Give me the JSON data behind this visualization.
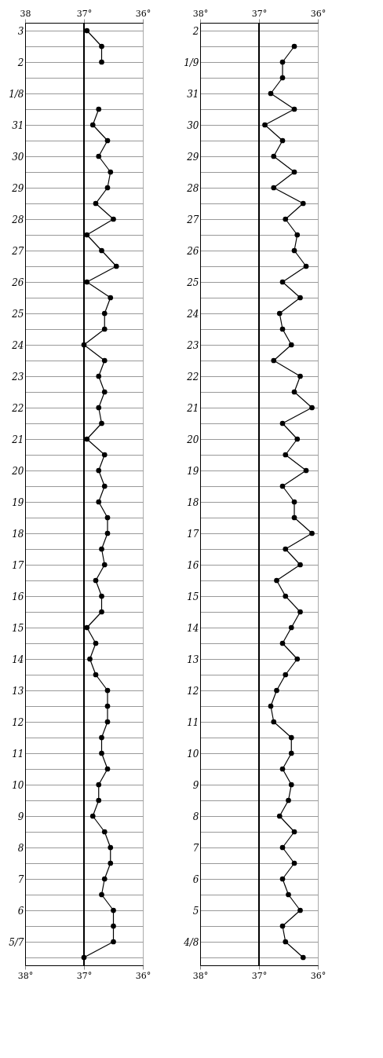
{
  "chart_data": [
    {
      "type": "line",
      "orientation": "horizontal",
      "color": "#000000",
      "marker": "circle",
      "grid": true,
      "categories": [
        "3",
        null,
        "2",
        null,
        "1/8",
        null,
        "31",
        null,
        "30",
        null,
        "29",
        null,
        "28",
        null,
        "27",
        null,
        "26",
        null,
        "25",
        null,
        "24",
        null,
        "23",
        null,
        "22",
        null,
        "21",
        null,
        "20",
        null,
        "19",
        null,
        "18",
        null,
        "17",
        null,
        "16",
        null,
        "15",
        null,
        "14",
        null,
        "13",
        null,
        "12",
        null,
        "11",
        null,
        "10",
        null,
        "9",
        null,
        "8",
        null,
        "7",
        null,
        "6",
        null,
        "5/7",
        null
      ],
      "values": [
        36.95,
        36.7,
        36.7,
        null,
        null,
        36.75,
        36.85,
        36.6,
        36.75,
        36.55,
        36.6,
        36.8,
        36.5,
        36.95,
        36.7,
        36.45,
        36.95,
        36.55,
        36.65,
        36.65,
        37.0,
        36.65,
        36.75,
        36.65,
        36.75,
        36.7,
        36.95,
        36.65,
        36.75,
        36.65,
        36.75,
        36.6,
        36.6,
        36.7,
        36.65,
        36.8,
        36.7,
        36.7,
        36.95,
        36.8,
        36.9,
        36.8,
        36.6,
        36.6,
        36.6,
        36.7,
        36.7,
        36.6,
        36.75,
        36.75,
        36.85,
        36.65,
        36.55,
        36.55,
        36.65,
        36.7,
        36.5,
        36.5,
        36.5,
        37.0
      ],
      "xlim": [
        38,
        36
      ],
      "xticks": [
        {
          "value": 38,
          "label": "38°"
        },
        {
          "value": 37,
          "label": "37°"
        },
        {
          "value": 36,
          "label": "36°"
        }
      ],
      "x2lim": [
        38,
        36
      ],
      "x2ticks": [
        {
          "value": 38,
          "label": "38"
        },
        {
          "value": 37,
          "label": "37°"
        },
        {
          "value": 36,
          "label": "36°"
        }
      ],
      "ref_lines": [
        {
          "axis": "x",
          "value": 37,
          "color": "#000000"
        }
      ]
    },
    {
      "type": "line",
      "orientation": "horizontal",
      "color": "#000000",
      "marker": "circle",
      "grid": true,
      "categories": [
        "2",
        null,
        "1/9",
        null,
        "31",
        null,
        "30",
        null,
        "29",
        null,
        "28",
        null,
        "27",
        null,
        "26",
        null,
        "25",
        null,
        "24",
        null,
        "23",
        null,
        "22",
        null,
        "21",
        null,
        "20",
        null,
        "19",
        null,
        "18",
        null,
        "17",
        null,
        "16",
        null,
        "15",
        null,
        "14",
        null,
        "13",
        null,
        "12",
        null,
        "11",
        null,
        "10",
        null,
        "9",
        null,
        "8",
        null,
        "7",
        null,
        "6",
        null,
        "5",
        null,
        "4/8",
        null
      ],
      "values": [
        null,
        36.4,
        36.6,
        36.6,
        36.8,
        36.4,
        36.9,
        36.6,
        36.75,
        36.4,
        36.75,
        36.25,
        36.55,
        36.35,
        36.4,
        36.2,
        36.6,
        36.3,
        36.65,
        36.6,
        36.45,
        36.75,
        36.3,
        36.4,
        36.1,
        36.6,
        36.35,
        36.55,
        36.2,
        36.6,
        36.4,
        36.4,
        36.1,
        36.55,
        36.3,
        36.7,
        36.55,
        36.3,
        36.45,
        36.6,
        36.35,
        36.55,
        36.7,
        36.8,
        36.75,
        36.45,
        36.45,
        36.6,
        36.45,
        36.5,
        36.65,
        36.4,
        36.6,
        36.4,
        36.6,
        36.5,
        36.3,
        36.6,
        36.55,
        36.25
      ],
      "xlim": [
        38,
        36
      ],
      "xticks": [
        {
          "value": 38,
          "label": "38°"
        },
        {
          "value": 37,
          "label": "37°"
        },
        {
          "value": 36,
          "label": "36°"
        }
      ],
      "x2lim": [
        38,
        36
      ],
      "x2ticks": [
        {
          "value": 38,
          "label": "38°"
        },
        {
          "value": 37,
          "label": "37°"
        },
        {
          "value": 36,
          "label": "36°"
        }
      ],
      "ref_lines": [
        {
          "axis": "x",
          "value": 37,
          "color": "#000000"
        }
      ]
    }
  ]
}
